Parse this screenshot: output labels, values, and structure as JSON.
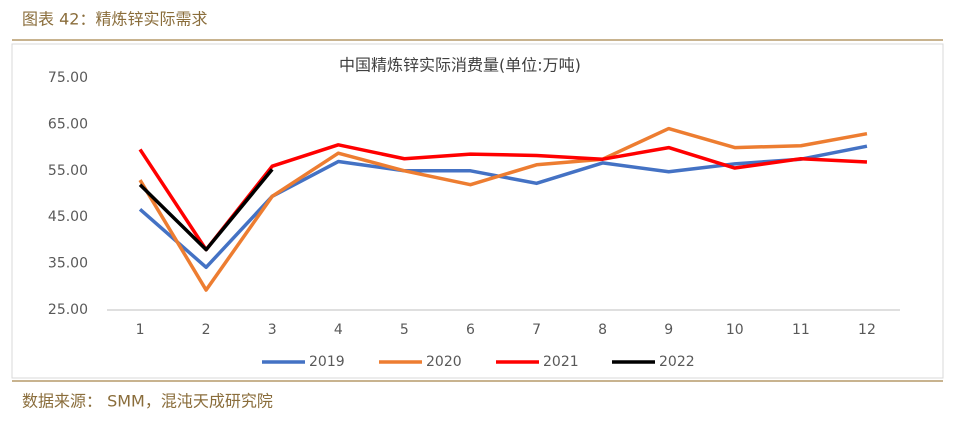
{
  "header": {
    "title": "图表 42：精炼锌实际需求"
  },
  "chart_data": {
    "type": "line",
    "title": "中国精炼锌实际消费量(单位:万吨)",
    "categories": [
      "1",
      "2",
      "3",
      "4",
      "5",
      "6",
      "7",
      "8",
      "9",
      "10",
      "11",
      "12"
    ],
    "series": [
      {
        "name": "2019",
        "color": "#4472c4",
        "values": [
          46.7,
          34.2,
          49.5,
          57.0,
          55.0,
          55.0,
          52.3,
          56.7,
          54.8,
          56.5,
          57.5,
          60.3
        ]
      },
      {
        "name": "2020",
        "color": "#ed7d31",
        "values": [
          53.0,
          29.3,
          49.5,
          58.8,
          55.0,
          52.0,
          56.3,
          57.5,
          64.1,
          60.0,
          60.4,
          63.0
        ]
      },
      {
        "name": "2021",
        "color": "#ff0000",
        "values": [
          59.6,
          38.0,
          56.0,
          60.6,
          57.6,
          58.6,
          58.3,
          57.5,
          60.0,
          55.6,
          57.6,
          56.9
        ]
      },
      {
        "name": "2022",
        "color": "#000000",
        "values": [
          52.0,
          38.0,
          55.3,
          null,
          null,
          null,
          null,
          null,
          null,
          null,
          null,
          null
        ]
      }
    ],
    "ylim": [
      25,
      75
    ],
    "yticks": [
      {
        "value": 25,
        "label": "25.00"
      },
      {
        "value": 35,
        "label": "35.00"
      },
      {
        "value": 45,
        "label": "45.00"
      },
      {
        "value": 55,
        "label": "55.00"
      },
      {
        "value": 65,
        "label": "65.00"
      },
      {
        "value": 75,
        "label": "75.00"
      }
    ],
    "grid": false,
    "legend": "bottom"
  },
  "footer": {
    "source": "数据来源： SMM，混沌天成研究院"
  }
}
